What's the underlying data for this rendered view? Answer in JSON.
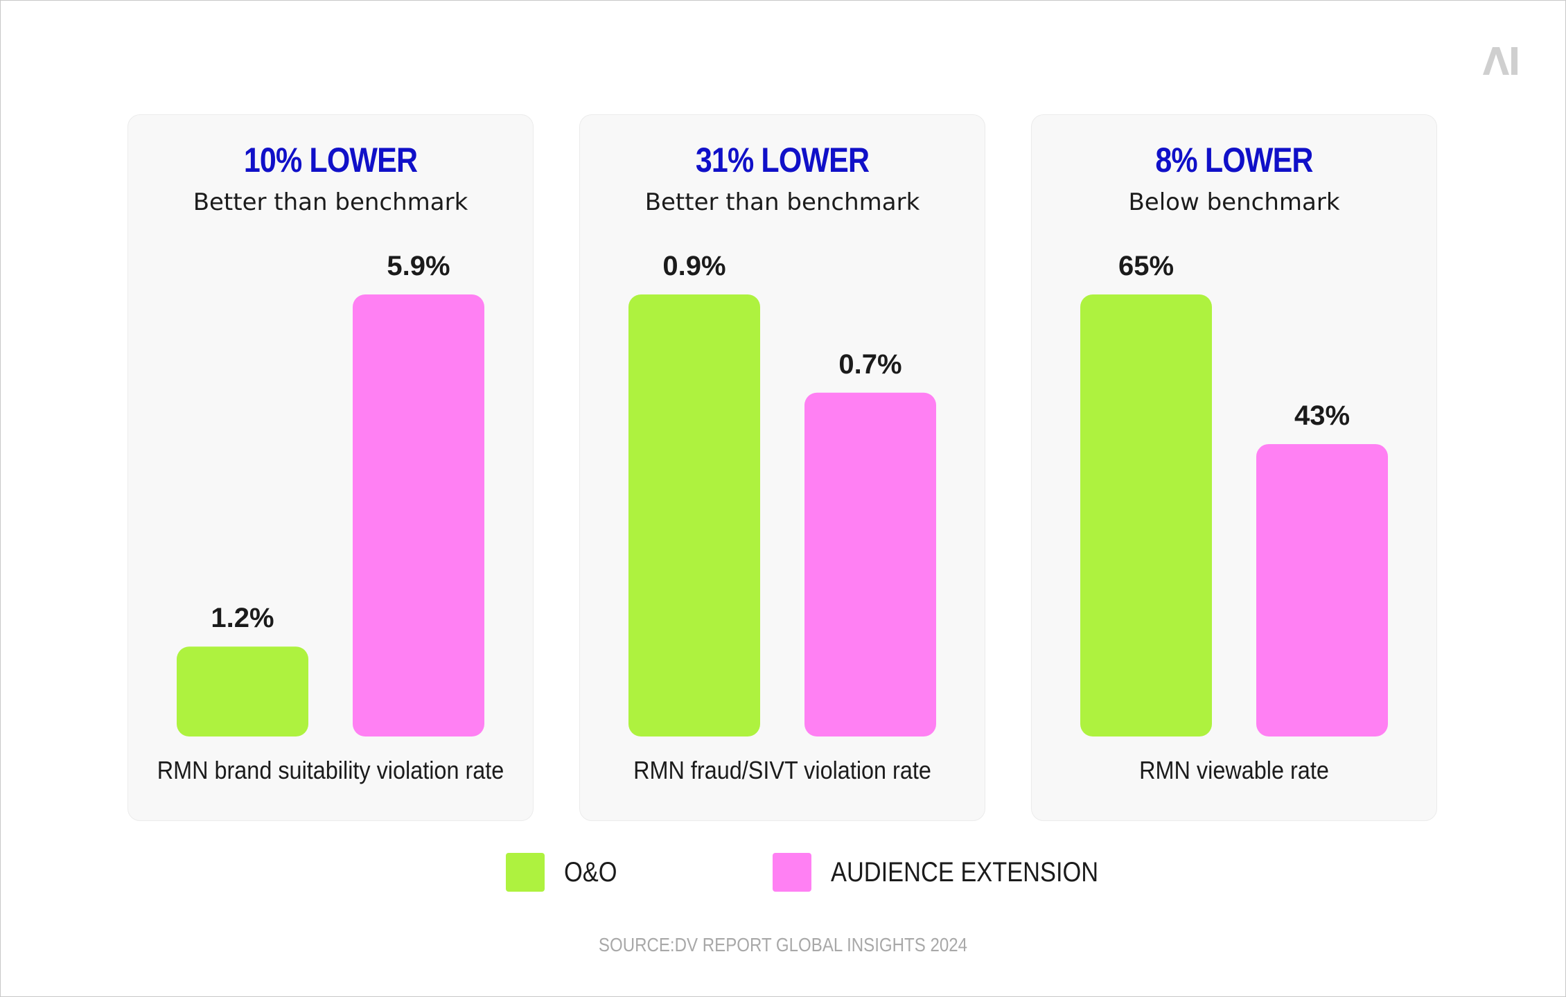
{
  "logo_text": "AI",
  "colors": {
    "o_and_o": "#aef23f",
    "audience_extension": "#ff80f3",
    "headline": "#1010c8"
  },
  "panels": [
    {
      "headline": "10% LOWER",
      "subline": "Better than benchmark",
      "axis_title": "RMN brand suitability violation rate"
    },
    {
      "headline": "31% LOWER",
      "subline": "Better than benchmark",
      "axis_title": "RMN fraud/SIVT violation rate"
    },
    {
      "headline": "8% LOWER",
      "subline": "Below benchmark",
      "axis_title": "RMN viewable rate"
    }
  ],
  "legend": {
    "o_and_o": "O&O",
    "audience_extension": "AUDIENCE EXTENSION"
  },
  "source": "SOURCE:DV REPORT GLOBAL INSIGHTS 2024",
  "chart_data": [
    {
      "type": "bar",
      "title": "10% LOWER",
      "subtitle": "Better than benchmark",
      "xlabel": "RMN brand suitability violation rate",
      "categories": [
        "O&O",
        "AUDIENCE EXTENSION"
      ],
      "values": [
        1.2,
        5.9
      ],
      "labels": [
        "1.2%",
        "5.9%"
      ],
      "ylim": [
        0,
        5.9
      ],
      "unit": "%"
    },
    {
      "type": "bar",
      "title": "31% LOWER",
      "subtitle": "Better than benchmark",
      "xlabel": "RMN fraud/SIVT violation rate",
      "categories": [
        "O&O",
        "AUDIENCE EXTENSION"
      ],
      "values": [
        0.9,
        0.7
      ],
      "labels": [
        "0.9%",
        "0.7%"
      ],
      "ylim": [
        0,
        0.9
      ],
      "unit": "%"
    },
    {
      "type": "bar",
      "title": "8% LOWER",
      "subtitle": "Below benchmark",
      "xlabel": "RMN viewable rate",
      "categories": [
        "O&O",
        "AUDIENCE EXTENSION"
      ],
      "values": [
        65,
        43
      ],
      "labels": [
        "65%",
        "43%"
      ],
      "ylim": [
        0,
        65
      ],
      "unit": "%",
      "note": "bar heights drawn as in original figure"
    }
  ]
}
